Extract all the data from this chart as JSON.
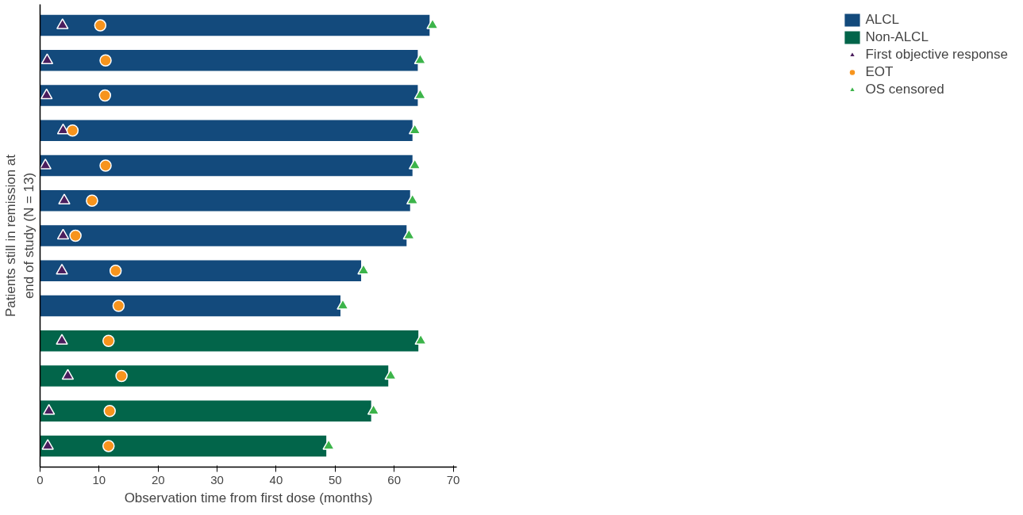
{
  "chart_data": {
    "type": "bar",
    "orientation": "horizontal",
    "xlabel": "Observation time from first dose (months)",
    "ylabel": "Patients still in remission at\nend of study (N = 13)",
    "categories": [
      null,
      null,
      null,
      null,
      null,
      null,
      null,
      null,
      null,
      null,
      null,
      null,
      null
    ],
    "series": [
      {
        "name": "ALCL",
        "color": "#134a7c",
        "values": [
          66.0,
          64.0,
          64.0,
          63.1,
          63.1,
          62.7,
          62.1,
          54.4,
          50.9,
          null,
          null,
          null,
          null
        ]
      },
      {
        "name": "Non-ALCL",
        "color": "#02654a",
        "values": [
          null,
          null,
          null,
          null,
          null,
          null,
          null,
          null,
          null,
          64.1,
          59.0,
          56.1,
          48.5
        ]
      },
      {
        "name": "First objective response",
        "type": "scatter",
        "marker": "triangle",
        "color": "#4b1e5e",
        "values": [
          3.8,
          1.2,
          1.1,
          3.9,
          0.9,
          4.1,
          3.9,
          3.7,
          null,
          3.7,
          4.7,
          1.5,
          1.3
        ]
      },
      {
        "name": "EOT",
        "type": "scatter",
        "marker": "circle",
        "color": "#f7941d",
        "values": [
          10.2,
          11.1,
          11.0,
          5.5,
          11.1,
          8.8,
          6.0,
          12.8,
          13.3,
          11.6,
          13.8,
          11.8,
          11.6
        ]
      },
      {
        "name": "OS censored",
        "type": "scatter",
        "marker": "triangle",
        "color": "#3cb44a",
        "values": [
          66.5,
          64.4,
          64.4,
          63.5,
          63.5,
          63.1,
          62.5,
          54.8,
          51.3,
          64.5,
          59.4,
          56.5,
          48.9
        ]
      }
    ],
    "xlim": [
      0,
      70.6
    ],
    "xticks": [
      0,
      10,
      20,
      30,
      40,
      50,
      60,
      70
    ],
    "tick_labels": "x",
    "grid": false,
    "legend": "right"
  }
}
